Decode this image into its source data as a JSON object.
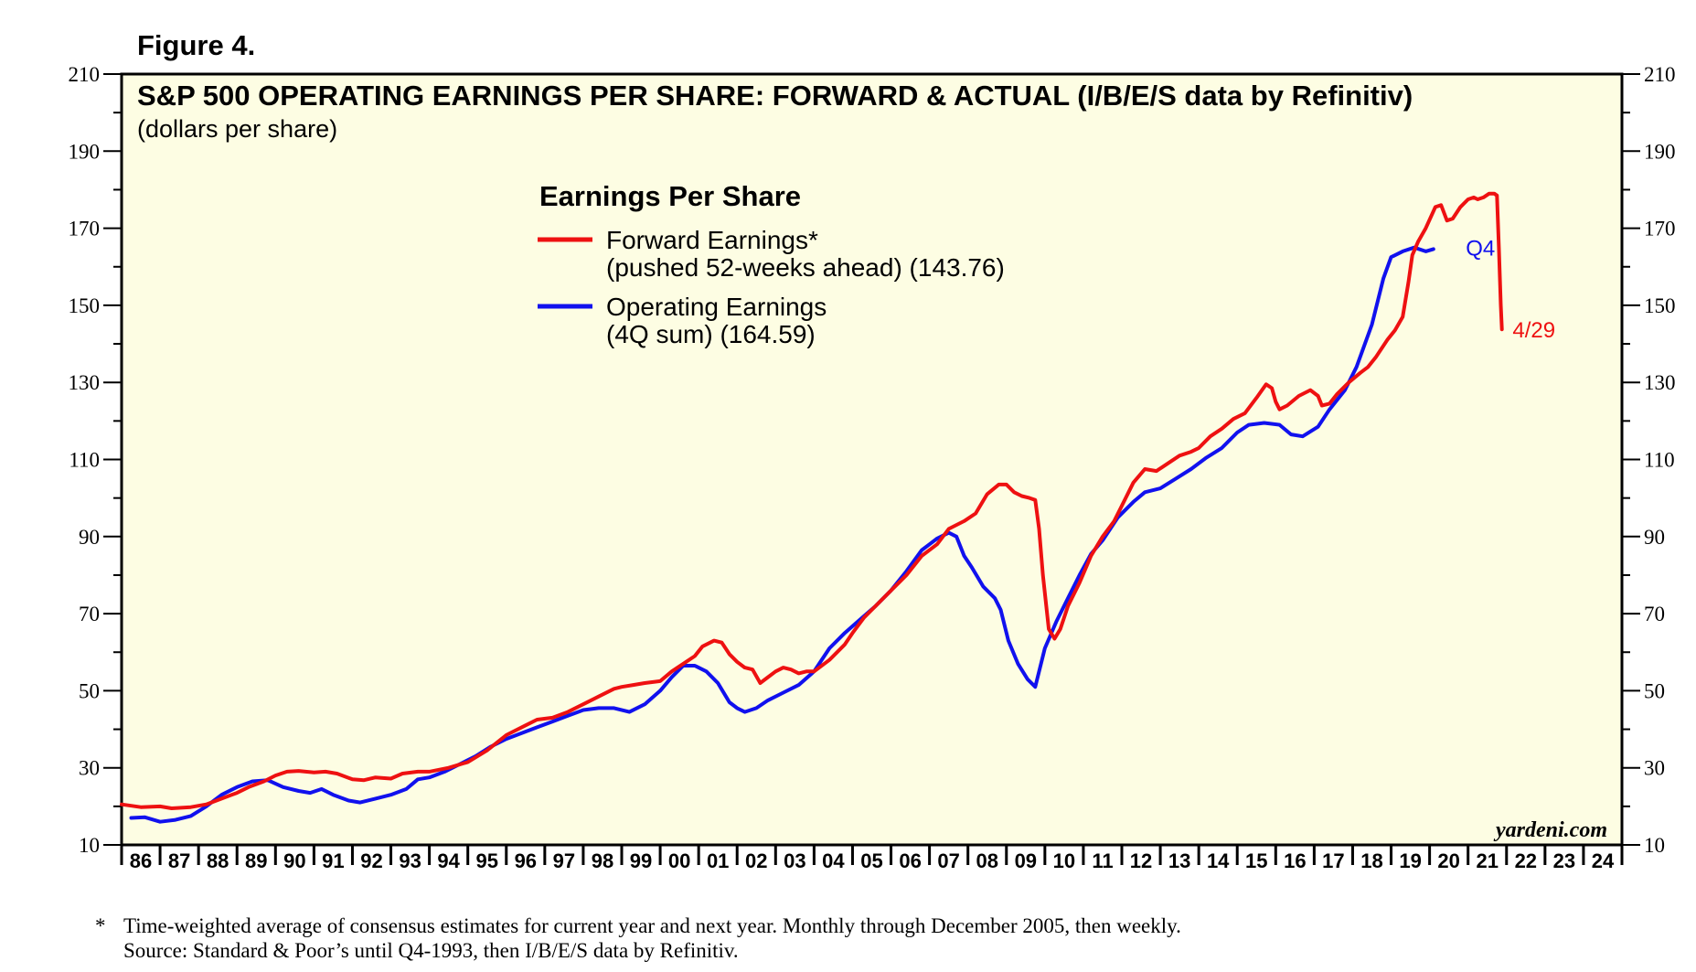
{
  "figure_label": "Figure 4.",
  "brand": "yardeni.com",
  "footnote": {
    "marker": "*",
    "line1": "Time-weighted average of consensus estimates for current year and next year. Monthly through December 2005, then weekly.",
    "line2": "Source: Standard & Poor’s until Q4-1993, then I/B/E/S data by Refinitiv."
  },
  "colors": {
    "background": "#fdfde3",
    "forward": "#ee1111",
    "operating": "#1111ee",
    "frame": "#000000"
  },
  "chart_data": {
    "type": "line",
    "title": "S&P 500 OPERATING EARNINGS PER SHARE: FORWARD & ACTUAL (I/B/E/S data by Refinitiv)",
    "subtitle": "(dollars per share)",
    "ylabel": "dollars per share",
    "ylim": [
      10,
      210
    ],
    "yticks": [
      10,
      30,
      50,
      70,
      90,
      110,
      130,
      150,
      170,
      190,
      210
    ],
    "xlim": [
      1986,
      2025
    ],
    "xtick_labels": [
      "86",
      "87",
      "88",
      "89",
      "90",
      "91",
      "92",
      "93",
      "94",
      "95",
      "96",
      "97",
      "98",
      "99",
      "00",
      "01",
      "02",
      "03",
      "04",
      "05",
      "06",
      "07",
      "08",
      "09",
      "10",
      "11",
      "12",
      "13",
      "14",
      "15",
      "16",
      "17",
      "18",
      "19",
      "20",
      "21",
      "22",
      "23",
      "24"
    ],
    "legend": {
      "title": "Earnings Per Share",
      "entries": [
        {
          "series": "forward",
          "line1": "Forward Earnings*",
          "line2": "(pushed 52-weeks ahead) (143.76)"
        },
        {
          "series": "operating",
          "line1": "Operating Earnings",
          "line2": "(4Q sum) (164.59)"
        }
      ]
    },
    "annotations": [
      {
        "text": "Q4",
        "series": "operating",
        "x": 2020.8,
        "y": 165
      },
      {
        "text": "4/29",
        "series": "forward",
        "x": 2021.35,
        "y": 143.76
      }
    ],
    "series": [
      {
        "name": "Forward Earnings* (pushed 52-weeks ahead) (143.76)",
        "key": "forward",
        "points": [
          [
            1986.0,
            20.5
          ],
          [
            1986.5,
            19.8
          ],
          [
            1987.0,
            20.0
          ],
          [
            1987.3,
            19.5
          ],
          [
            1987.8,
            19.8
          ],
          [
            1988.2,
            20.5
          ],
          [
            1988.6,
            22.0
          ],
          [
            1989.0,
            23.5
          ],
          [
            1989.3,
            25.0
          ],
          [
            1989.7,
            26.5
          ],
          [
            1990.0,
            28.0
          ],
          [
            1990.3,
            29.0
          ],
          [
            1990.6,
            29.2
          ],
          [
            1991.0,
            28.8
          ],
          [
            1991.3,
            29.0
          ],
          [
            1991.6,
            28.5
          ],
          [
            1992.0,
            27.0
          ],
          [
            1992.3,
            26.8
          ],
          [
            1992.6,
            27.5
          ],
          [
            1993.0,
            27.2
          ],
          [
            1993.3,
            28.5
          ],
          [
            1993.7,
            29.0
          ],
          [
            1994.0,
            29.0
          ],
          [
            1994.5,
            30.0
          ],
          [
            1995.0,
            31.5
          ],
          [
            1995.5,
            34.5
          ],
          [
            1996.0,
            38.5
          ],
          [
            1996.5,
            41.0
          ],
          [
            1996.8,
            42.5
          ],
          [
            1997.2,
            43.0
          ],
          [
            1997.6,
            44.5
          ],
          [
            1998.0,
            46.5
          ],
          [
            1998.4,
            48.5
          ],
          [
            1998.8,
            50.5
          ],
          [
            1999.0,
            51.0
          ],
          [
            1999.3,
            51.5
          ],
          [
            1999.6,
            52.0
          ],
          [
            2000.0,
            52.5
          ],
          [
            2000.3,
            55.0
          ],
          [
            2000.6,
            57.0
          ],
          [
            2000.9,
            59.0
          ],
          [
            2001.1,
            61.5
          ],
          [
            2001.4,
            63.0
          ],
          [
            2001.6,
            62.5
          ],
          [
            2001.8,
            59.5
          ],
          [
            2002.0,
            57.5
          ],
          [
            2002.2,
            56.0
          ],
          [
            2002.4,
            55.5
          ],
          [
            2002.6,
            52.0
          ],
          [
            2002.8,
            53.5
          ],
          [
            2003.0,
            55.0
          ],
          [
            2003.2,
            56.0
          ],
          [
            2003.4,
            55.5
          ],
          [
            2003.6,
            54.5
          ],
          [
            2003.8,
            55.0
          ],
          [
            2004.0,
            55.0
          ],
          [
            2004.4,
            58.0
          ],
          [
            2004.8,
            62.0
          ],
          [
            2005.0,
            65.0
          ],
          [
            2005.3,
            69.0
          ],
          [
            2005.7,
            73.0
          ],
          [
            2006.0,
            76.0
          ],
          [
            2006.4,
            80.0
          ],
          [
            2006.8,
            85.0
          ],
          [
            2007.2,
            88.0
          ],
          [
            2007.5,
            92.0
          ],
          [
            2007.9,
            94.0
          ],
          [
            2008.2,
            96.0
          ],
          [
            2008.5,
            101.0
          ],
          [
            2008.8,
            103.5
          ],
          [
            2009.0,
            103.5
          ],
          [
            2009.2,
            101.5
          ],
          [
            2009.4,
            100.5
          ],
          [
            2009.6,
            100.0
          ],
          [
            2009.75,
            99.5
          ],
          [
            2009.85,
            92.0
          ],
          [
            2009.95,
            80.0
          ],
          [
            2010.1,
            66.0
          ],
          [
            2010.25,
            63.5
          ],
          [
            2010.4,
            66.0
          ],
          [
            2010.6,
            72.0
          ],
          [
            2010.9,
            78.0
          ],
          [
            2011.2,
            85.0
          ],
          [
            2011.5,
            90.0
          ],
          [
            2011.8,
            94.0
          ],
          [
            2012.0,
            98.0
          ],
          [
            2012.3,
            104.0
          ],
          [
            2012.6,
            107.5
          ],
          [
            2012.9,
            107.0
          ],
          [
            2013.2,
            109.0
          ],
          [
            2013.5,
            111.0
          ],
          [
            2013.8,
            112.0
          ],
          [
            2014.0,
            113.0
          ],
          [
            2014.3,
            116.0
          ],
          [
            2014.6,
            118.0
          ],
          [
            2014.9,
            120.5
          ],
          [
            2015.2,
            122.0
          ],
          [
            2015.5,
            126.0
          ],
          [
            2015.75,
            129.5
          ],
          [
            2015.9,
            128.5
          ],
          [
            2016.0,
            125.0
          ],
          [
            2016.1,
            123.0
          ],
          [
            2016.3,
            124.0
          ],
          [
            2016.6,
            126.5
          ],
          [
            2016.9,
            128.0
          ],
          [
            2017.1,
            126.5
          ],
          [
            2017.2,
            124.0
          ],
          [
            2017.4,
            124.5
          ],
          [
            2017.6,
            127.0
          ],
          [
            2017.9,
            130.0
          ],
          [
            2018.2,
            132.5
          ],
          [
            2018.4,
            134.0
          ],
          [
            2018.6,
            136.5
          ],
          [
            2018.9,
            141.0
          ],
          [
            2019.1,
            143.5
          ],
          [
            2019.3,
            147.0
          ],
          [
            2019.45,
            156.0
          ],
          [
            2019.55,
            163.0
          ],
          [
            2019.7,
            166.5
          ],
          [
            2019.9,
            170.0
          ],
          [
            2020.15,
            175.5
          ],
          [
            2020.3,
            176.0
          ],
          [
            2020.45,
            172.0
          ],
          [
            2020.6,
            172.5
          ],
          [
            2020.8,
            175.5
          ],
          [
            2021.0,
            177.5
          ],
          [
            2021.15,
            178.0
          ],
          [
            2021.25,
            177.5
          ],
          [
            2021.4,
            178.0
          ],
          [
            2021.55,
            179.0
          ],
          [
            2021.68,
            179.0
          ],
          [
            2021.75,
            178.5
          ],
          [
            2021.8,
            165.0
          ],
          [
            2021.85,
            150.0
          ],
          [
            2021.88,
            143.76
          ]
        ]
      },
      {
        "name": "Operating Earnings (4Q sum) (164.59)",
        "key": "operating",
        "points": [
          [
            1986.25,
            17.0
          ],
          [
            1986.6,
            17.2
          ],
          [
            1987.0,
            16.0
          ],
          [
            1987.4,
            16.5
          ],
          [
            1987.8,
            17.5
          ],
          [
            1988.2,
            20.0
          ],
          [
            1988.6,
            23.0
          ],
          [
            1989.0,
            25.0
          ],
          [
            1989.4,
            26.5
          ],
          [
            1989.8,
            26.8
          ],
          [
            1990.2,
            25.0
          ],
          [
            1990.6,
            24.0
          ],
          [
            1990.9,
            23.5
          ],
          [
            1991.2,
            24.5
          ],
          [
            1991.5,
            23.0
          ],
          [
            1991.9,
            21.5
          ],
          [
            1992.2,
            21.0
          ],
          [
            1992.6,
            22.0
          ],
          [
            1993.0,
            23.0
          ],
          [
            1993.4,
            24.5
          ],
          [
            1993.7,
            27.0
          ],
          [
            1994.0,
            27.5
          ],
          [
            1994.4,
            29.0
          ],
          [
            1994.8,
            31.0
          ],
          [
            1995.2,
            33.0
          ],
          [
            1995.6,
            35.5
          ],
          [
            1996.0,
            37.5
          ],
          [
            1996.4,
            39.0
          ],
          [
            1996.8,
            40.5
          ],
          [
            1997.2,
            42.0
          ],
          [
            1997.6,
            43.5
          ],
          [
            1998.0,
            45.0
          ],
          [
            1998.4,
            45.5
          ],
          [
            1998.8,
            45.5
          ],
          [
            1999.2,
            44.5
          ],
          [
            1999.6,
            46.5
          ],
          [
            2000.0,
            50.0
          ],
          [
            2000.3,
            53.5
          ],
          [
            2000.6,
            56.5
          ],
          [
            2000.9,
            56.5
          ],
          [
            2001.2,
            55.0
          ],
          [
            2001.5,
            52.0
          ],
          [
            2001.8,
            47.0
          ],
          [
            2002.0,
            45.5
          ],
          [
            2002.2,
            44.5
          ],
          [
            2002.5,
            45.5
          ],
          [
            2002.8,
            47.5
          ],
          [
            2003.2,
            49.5
          ],
          [
            2003.6,
            51.5
          ],
          [
            2004.0,
            55.0
          ],
          [
            2004.4,
            61.0
          ],
          [
            2004.8,
            65.0
          ],
          [
            2005.2,
            68.5
          ],
          [
            2005.6,
            72.0
          ],
          [
            2006.0,
            76.0
          ],
          [
            2006.4,
            81.0
          ],
          [
            2006.8,
            86.5
          ],
          [
            2007.2,
            89.5
          ],
          [
            2007.5,
            91.0
          ],
          [
            2007.7,
            90.0
          ],
          [
            2007.9,
            85.0
          ],
          [
            2008.1,
            82.0
          ],
          [
            2008.4,
            77.0
          ],
          [
            2008.7,
            74.0
          ],
          [
            2008.85,
            71.0
          ],
          [
            2009.05,
            63.0
          ],
          [
            2009.3,
            57.0
          ],
          [
            2009.55,
            53.0
          ],
          [
            2009.75,
            51.0
          ],
          [
            2010.0,
            61.0
          ],
          [
            2010.3,
            68.0
          ],
          [
            2010.6,
            74.0
          ],
          [
            2010.9,
            80.0
          ],
          [
            2011.2,
            85.5
          ],
          [
            2011.5,
            89.0
          ],
          [
            2011.9,
            95.0
          ],
          [
            2012.3,
            99.0
          ],
          [
            2012.6,
            101.5
          ],
          [
            2013.0,
            102.5
          ],
          [
            2013.4,
            105.0
          ],
          [
            2013.8,
            107.5
          ],
          [
            2014.2,
            110.5
          ],
          [
            2014.6,
            113.0
          ],
          [
            2015.0,
            117.0
          ],
          [
            2015.3,
            119.0
          ],
          [
            2015.7,
            119.5
          ],
          [
            2016.1,
            119.0
          ],
          [
            2016.4,
            116.5
          ],
          [
            2016.7,
            116.0
          ],
          [
            2017.1,
            118.5
          ],
          [
            2017.4,
            123.0
          ],
          [
            2017.8,
            128.0
          ],
          [
            2018.1,
            134.0
          ],
          [
            2018.5,
            145.0
          ],
          [
            2018.8,
            157.0
          ],
          [
            2019.0,
            162.5
          ],
          [
            2019.3,
            164.0
          ],
          [
            2019.6,
            165.0
          ],
          [
            2019.9,
            164.0
          ],
          [
            2020.1,
            164.59
          ]
        ]
      }
    ]
  }
}
